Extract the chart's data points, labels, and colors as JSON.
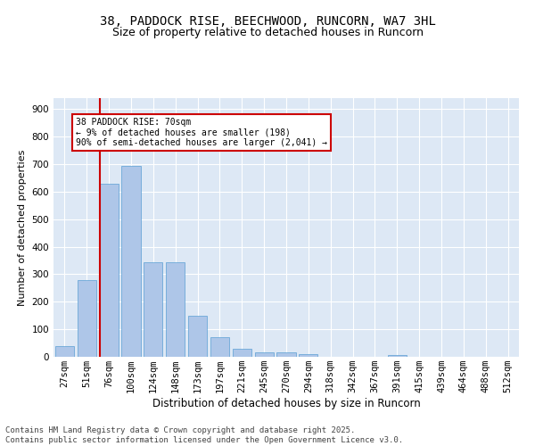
{
  "title": "38, PADDOCK RISE, BEECHWOOD, RUNCORN, WA7 3HL",
  "subtitle": "Size of property relative to detached houses in Runcorn",
  "xlabel": "Distribution of detached houses by size in Runcorn",
  "ylabel": "Number of detached properties",
  "categories": [
    "27sqm",
    "51sqm",
    "76sqm",
    "100sqm",
    "124sqm",
    "148sqm",
    "173sqm",
    "197sqm",
    "221sqm",
    "245sqm",
    "270sqm",
    "294sqm",
    "318sqm",
    "342sqm",
    "367sqm",
    "391sqm",
    "415sqm",
    "439sqm",
    "464sqm",
    "488sqm",
    "512sqm"
  ],
  "values": [
    40,
    280,
    630,
    695,
    345,
    345,
    150,
    70,
    30,
    15,
    15,
    10,
    0,
    0,
    0,
    8,
    0,
    0,
    0,
    0,
    0
  ],
  "bar_color": "#aec6e8",
  "bar_edge_color": "#5a9fd4",
  "red_line_index": 2,
  "red_line_color": "#cc0000",
  "annotation_text": "38 PADDOCK RISE: 70sqm\n← 9% of detached houses are smaller (198)\n90% of semi-detached houses are larger (2,041) →",
  "annotation_box_color": "#ffffff",
  "annotation_box_edge_color": "#cc0000",
  "ylim": [
    0,
    940
  ],
  "yticks": [
    0,
    100,
    200,
    300,
    400,
    500,
    600,
    700,
    800,
    900
  ],
  "bg_color": "#dde8f5",
  "footer_text": "Contains HM Land Registry data © Crown copyright and database right 2025.\nContains public sector information licensed under the Open Government Licence v3.0.",
  "title_fontsize": 10,
  "subtitle_fontsize": 9,
  "xlabel_fontsize": 8.5,
  "ylabel_fontsize": 8,
  "tick_fontsize": 7.5,
  "footer_fontsize": 6.5
}
